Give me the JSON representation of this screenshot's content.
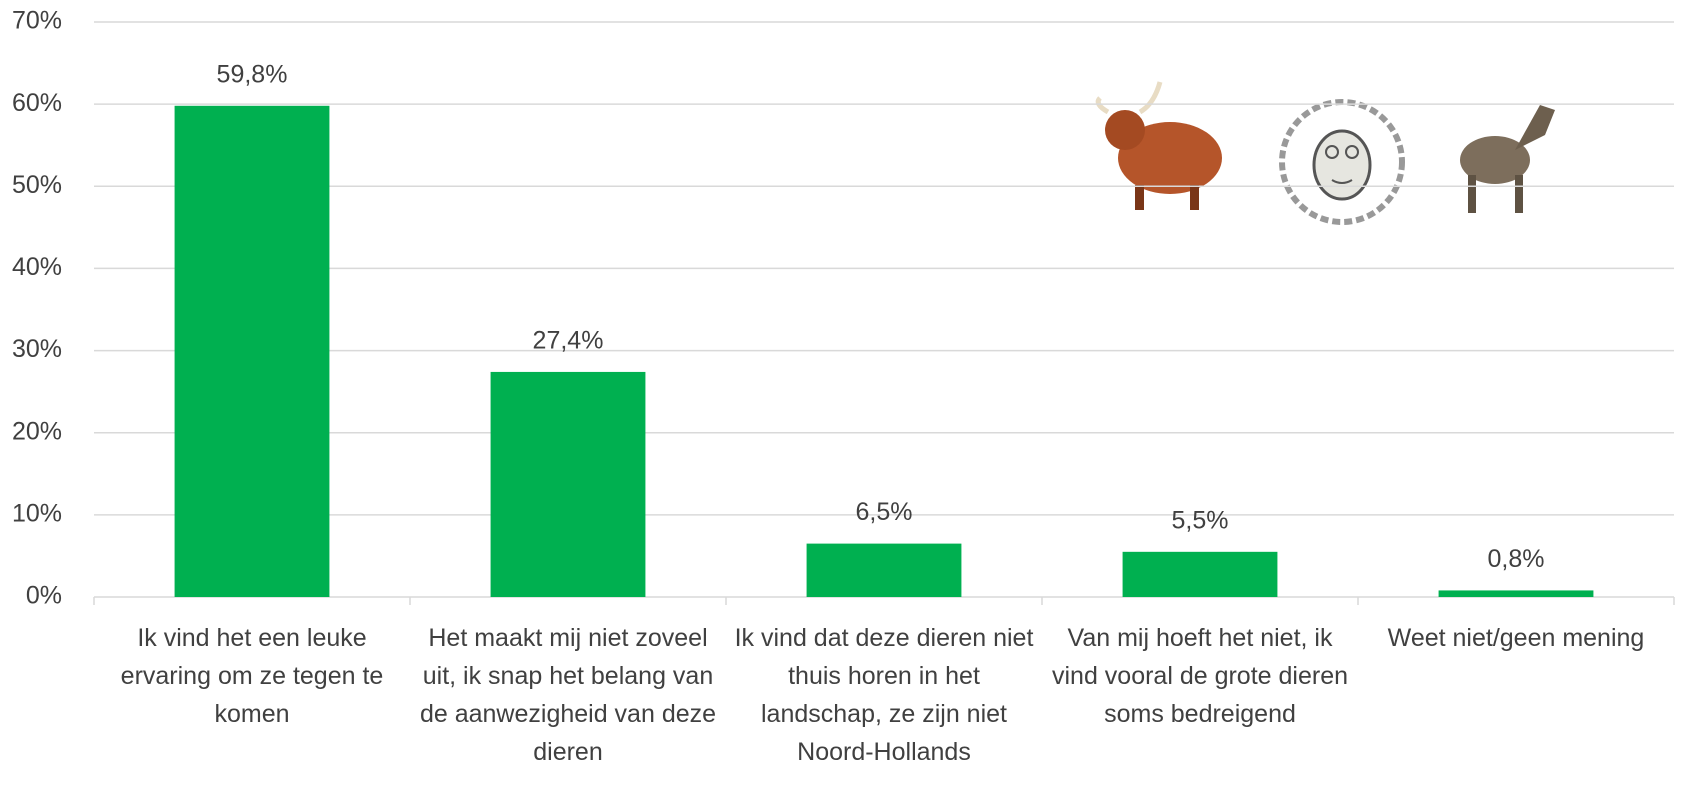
{
  "chart_data": {
    "type": "bar",
    "categories": [
      "Ik vind het een leuke ervaring om ze tegen te komen",
      "Het maakt mij niet zoveel uit, ik snap het belang van de aanwezigheid van deze dieren",
      "Ik vind dat deze dieren niet thuis horen in het landschap, ze zijn niet Noord-Hollands",
      "Van mij hoeft het niet, ik vind vooral de grote dieren soms bedreigend",
      "Weet niet/geen mening"
    ],
    "values": [
      59.8,
      27.4,
      6.5,
      5.5,
      0.8
    ],
    "value_labels": [
      "59,8%",
      "27,4%",
      "6,5%",
      "5,5%",
      "0,8%"
    ],
    "color": "#00b050",
    "ylim": [
      0,
      70
    ],
    "yticks": [
      {
        "value": 0,
        "label": "0%"
      },
      {
        "value": 10,
        "label": "10%"
      },
      {
        "value": 20,
        "label": "20%"
      },
      {
        "value": 30,
        "label": "30%"
      },
      {
        "value": 40,
        "label": "40%"
      },
      {
        "value": 50,
        "label": "50%"
      },
      {
        "value": 60,
        "label": "60%"
      },
      {
        "value": 70,
        "label": "70%"
      }
    ],
    "grid": true
  }
}
